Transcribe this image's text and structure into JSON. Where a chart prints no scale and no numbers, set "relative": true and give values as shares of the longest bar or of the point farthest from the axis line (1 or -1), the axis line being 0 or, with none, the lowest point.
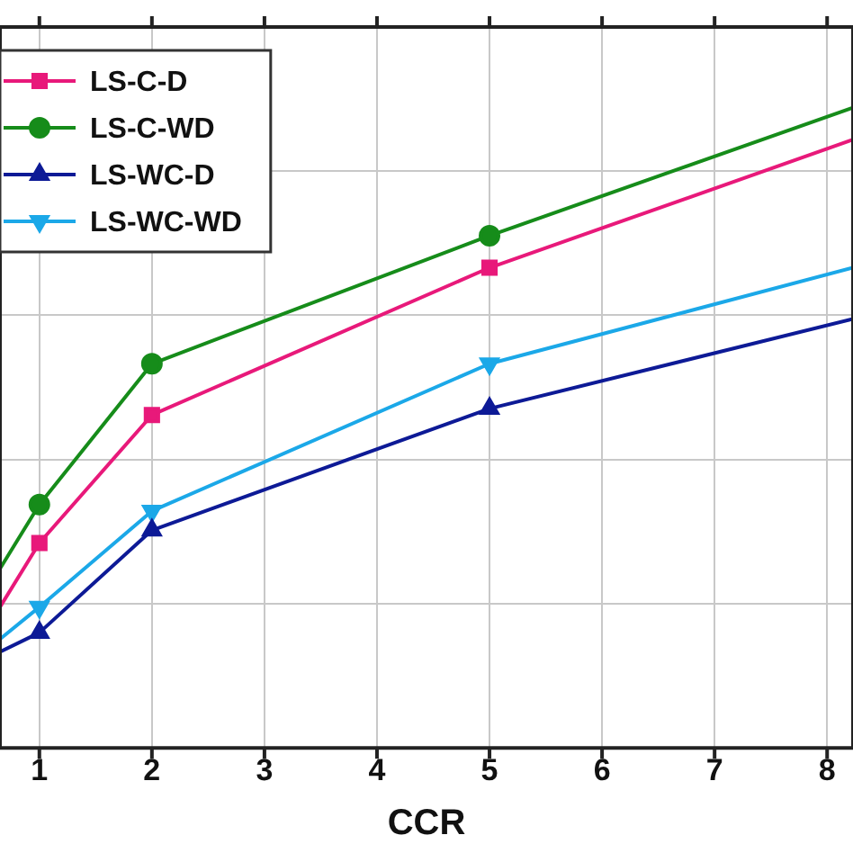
{
  "chart_data": {
    "type": "line",
    "xlabel": "CCR",
    "x": [
      0.65,
      1,
      2,
      5,
      8.23
    ],
    "xlim": [
      0.65,
      8.23
    ],
    "xticks": [
      1,
      2,
      3,
      4,
      5,
      6,
      7,
      8
    ],
    "relative": true,
    "grid": true,
    "legend": "top left",
    "series": [
      {
        "name": "LS-C-D",
        "color": "#e8197a",
        "marker": "square",
        "values": [
          0.22,
          0.32,
          0.52,
          0.75,
          0.95
        ]
      },
      {
        "name": "LS-C-WD",
        "color": "#168c1a",
        "marker": "circle",
        "values": [
          0.28,
          0.38,
          0.6,
          0.8,
          1
        ]
      },
      {
        "name": "LS-WC-D",
        "color": "#0d1a96",
        "marker": "triangle",
        "values": [
          0.15,
          0.18,
          0.34,
          0.53,
          0.67
        ]
      },
      {
        "name": "LS-WC-WD",
        "color": "#1ba8e8",
        "marker": "triangle-down",
        "values": [
          0.17,
          0.22,
          0.37,
          0.6,
          0.75
        ]
      }
    ]
  }
}
